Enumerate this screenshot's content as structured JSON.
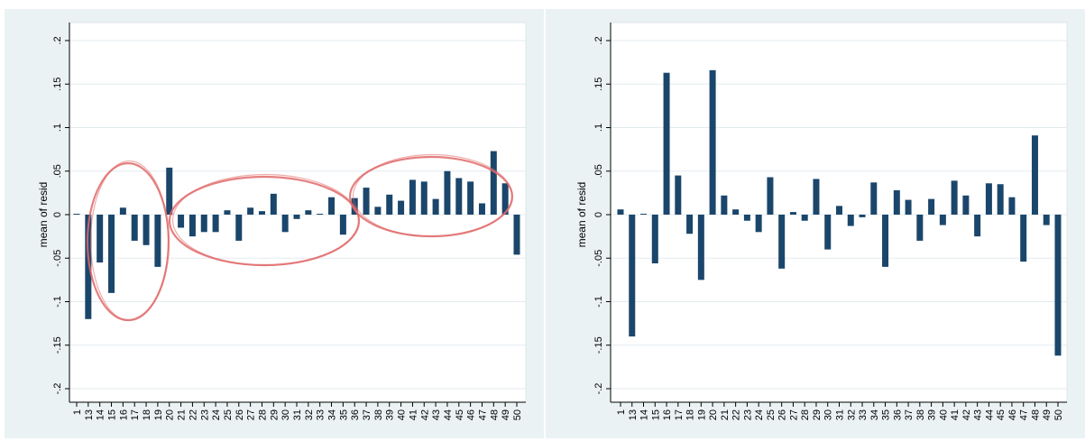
{
  "chart_data": [
    {
      "type": "bar",
      "ylabel": "mean of resid",
      "ylim": [
        -0.2,
        0.2
      ],
      "yticks": [
        -0.2,
        -0.15,
        -0.1,
        -0.05,
        0,
        0.05,
        0.1,
        0.15,
        0.2
      ],
      "ytick_labels": [
        "-.2",
        "-.15",
        "-.1",
        "-.05",
        "0",
        ".05",
        ".1",
        ".15",
        ".2"
      ],
      "grid": true,
      "bar_color": "#1b466b",
      "annotation_color": "#e06a6a",
      "annotations": [
        "ellipse",
        "ellipse",
        "ellipse",
        "ellipse"
      ],
      "categories": [
        "1",
        "13",
        "14",
        "15",
        "16",
        "17",
        "18",
        "19",
        "20",
        "21",
        "22",
        "23",
        "24",
        "25",
        "26",
        "27",
        "28",
        "29",
        "30",
        "31",
        "32",
        "33",
        "34",
        "35",
        "36",
        "37",
        "38",
        "39",
        "40",
        "41",
        "42",
        "43",
        "44",
        "45",
        "46",
        "47",
        "48",
        "49",
        "50"
      ],
      "values": [
        0.001,
        -0.12,
        -0.055,
        -0.09,
        0.008,
        -0.03,
        -0.035,
        -0.06,
        0.054,
        -0.015,
        -0.025,
        -0.02,
        -0.02,
        0.005,
        -0.03,
        0.008,
        0.004,
        0.024,
        -0.02,
        -0.005,
        0.005,
        0.001,
        0.02,
        -0.023,
        0.019,
        0.031,
        0.009,
        0.023,
        0.016,
        0.04,
        0.038,
        0.018,
        0.05,
        0.042,
        0.038,
        0.013,
        0.073,
        0.036,
        -0.046
      ]
    },
    {
      "type": "bar",
      "ylabel": "mean of resid",
      "ylim": [
        -0.2,
        0.2
      ],
      "yticks": [
        -0.2,
        -0.15,
        -0.1,
        -0.05,
        0,
        0.05,
        0.1,
        0.15,
        0.2
      ],
      "ytick_labels": [
        "-.2",
        "-.15",
        "-.1",
        "-.05",
        "0",
        ".05",
        ".1",
        ".15",
        ".2"
      ],
      "grid": true,
      "bar_color": "#1b466b",
      "categories": [
        "1",
        "13",
        "14",
        "15",
        "16",
        "17",
        "18",
        "19",
        "20",
        "21",
        "22",
        "23",
        "24",
        "25",
        "26",
        "27",
        "28",
        "29",
        "30",
        "31",
        "32",
        "33",
        "34",
        "35",
        "36",
        "37",
        "38",
        "39",
        "40",
        "41",
        "42",
        "43",
        "44",
        "45",
        "46",
        "47",
        "48",
        "49",
        "50"
      ],
      "values": [
        0.006,
        -0.14,
        0.001,
        -0.056,
        0.163,
        0.045,
        -0.022,
        -0.075,
        0.166,
        0.022,
        0.006,
        -0.007,
        -0.02,
        0.043,
        -0.062,
        0.003,
        -0.007,
        0.041,
        -0.04,
        0.01,
        -0.013,
        -0.003,
        0.037,
        -0.06,
        0.028,
        0.017,
        -0.03,
        0.018,
        -0.012,
        0.039,
        0.022,
        -0.025,
        0.036,
        0.035,
        0.02,
        -0.054,
        0.091,
        -0.012,
        -0.162
      ]
    }
  ]
}
